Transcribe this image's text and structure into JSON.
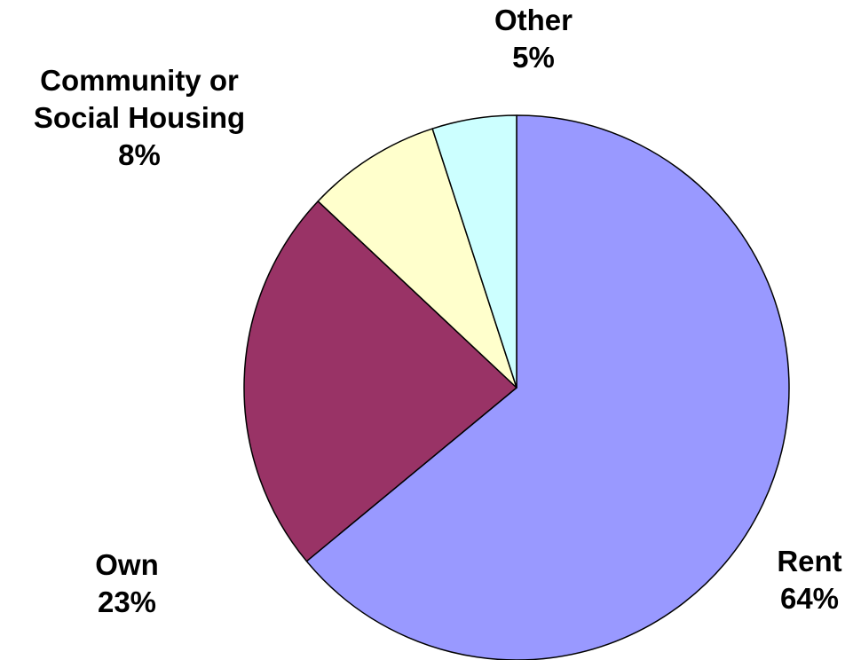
{
  "chart_data": {
    "type": "pie",
    "title": "",
    "start": "12 o'clock",
    "direction": "clockwise",
    "legend": "none",
    "slices": [
      {
        "label": "Rent",
        "label_lines": [
          "Rent"
        ],
        "value": 64,
        "value_label": "64%",
        "color": "#9999ff"
      },
      {
        "label": "Own",
        "label_lines": [
          "Own"
        ],
        "value": 23,
        "value_label": "23%",
        "color": "#993366"
      },
      {
        "label": "Community or Social Housing",
        "label_lines": [
          "Community or",
          "Social Housing"
        ],
        "value": 8,
        "value_label": "8%",
        "color": "#ffffcc"
      },
      {
        "label": "Other",
        "label_lines": [
          "Other"
        ],
        "value": 5,
        "value_label": "5%",
        "color": "#ccffff"
      }
    ]
  }
}
